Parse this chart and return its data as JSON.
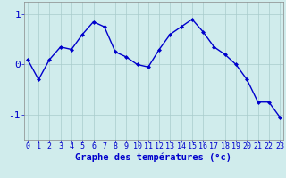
{
  "x": [
    0,
    1,
    2,
    3,
    4,
    5,
    6,
    7,
    8,
    9,
    10,
    11,
    12,
    13,
    14,
    15,
    16,
    17,
    18,
    19,
    20,
    21,
    22,
    23
  ],
  "y": [
    0.1,
    -0.3,
    0.1,
    0.35,
    0.3,
    0.6,
    0.85,
    0.75,
    0.25,
    0.15,
    0.0,
    -0.05,
    0.3,
    0.6,
    0.75,
    0.9,
    0.65,
    0.35,
    0.2,
    0.0,
    -0.3,
    -0.75,
    -0.75,
    -1.05
  ],
  "line_color": "#0000cc",
  "marker": "D",
  "marker_size": 2.0,
  "line_width": 1.0,
  "bg_color": "#d0ecec",
  "grid_color": "#a8cccc",
  "tick_color": "#0000cc",
  "xlabel": "Graphe des températures (°c)",
  "xlabel_fontsize": 7.5,
  "ytick_fontsize": 8,
  "xtick_fontsize": 6,
  "yticks": [
    -1,
    0,
    1
  ],
  "ylim": [
    -1.5,
    1.25
  ],
  "xlim": [
    -0.3,
    23.3
  ],
  "spine_color": "#888888"
}
